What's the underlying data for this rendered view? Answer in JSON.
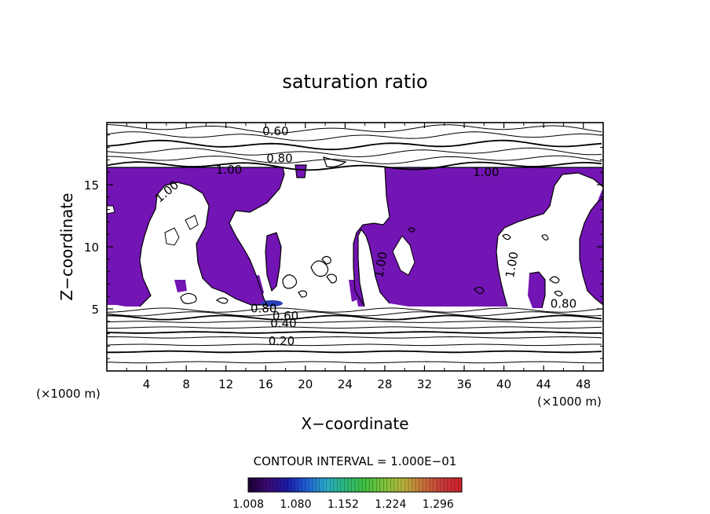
{
  "chart_data": {
    "type": "contour",
    "title": "saturation ratio",
    "xlabel": "X−coordinate",
    "ylabel": "Z−coordinate",
    "x_unit_label": "(×1000 m)",
    "y_unit_label": "(×1000 m)",
    "xlim": [
      0,
      50
    ],
    "ylim": [
      0,
      20
    ],
    "x_ticks": [
      4,
      8,
      12,
      16,
      20,
      24,
      28,
      32,
      36,
      40,
      44,
      48
    ],
    "y_ticks": [
      5,
      10,
      15
    ],
    "contour_interval_text": "CONTOUR INTERVAL = 1.000E−01",
    "contour_labels": [
      {
        "text": "0.60",
        "x": 17.0,
        "z": 19.0
      },
      {
        "text": "0.80",
        "x": 17.4,
        "z": 16.8
      },
      {
        "text": "1.00",
        "x": 12.3,
        "z": 15.9
      },
      {
        "text": "1.00",
        "x": 38.2,
        "z": 15.7
      },
      {
        "text": "1.00",
        "x": 6.3,
        "z": 14.2
      },
      {
        "text": "1.00",
        "x": 28.0,
        "z": 8.5
      },
      {
        "text": "1.00",
        "x": 41.2,
        "z": 8.5
      },
      {
        "text": "0.80",
        "x": 46.0,
        "z": 5.1
      },
      {
        "text": "0.80",
        "x": 15.8,
        "z": 4.7
      },
      {
        "text": "0.60",
        "x": 18.0,
        "z": 4.1
      },
      {
        "text": "0.40",
        "x": 17.8,
        "z": 3.5
      },
      {
        "text": "0.20",
        "x": 17.6,
        "z": 2.1
      }
    ],
    "contour_levels": [
      {
        "z": 0.7,
        "style": "thin"
      },
      {
        "z": 1.55,
        "style": "thick"
      },
      {
        "z": 2.1,
        "style": "thin"
      },
      {
        "z": 2.7,
        "style": "thin"
      },
      {
        "z": 3.1,
        "style": "thick"
      },
      {
        "z": 3.5,
        "style": "thin"
      },
      {
        "z": 3.95,
        "style": "thin"
      },
      {
        "z": 4.3,
        "style": "thick"
      },
      {
        "z": 4.6,
        "style": "thin"
      },
      {
        "z": 4.9,
        "style": "thin"
      },
      {
        "z": 16.5,
        "style": "thick"
      },
      {
        "z": 17.0,
        "style": "thin"
      },
      {
        "z": 17.6,
        "style": "thin"
      },
      {
        "z": 18.2,
        "style": "thick"
      },
      {
        "z": 18.9,
        "style": "thin"
      },
      {
        "z": 19.5,
        "style": "thin"
      }
    ],
    "shaded_regions_description": "supersaturated (ratio > 1.0) area",
    "colorbar": {
      "min": 1.008,
      "max": 1.332,
      "tick_labels": [
        "1.008",
        "1.080",
        "1.152",
        "1.224",
        "1.296"
      ],
      "colors": [
        "#1a0033",
        "#3b0a73",
        "#1a1aa6",
        "#1f5fd6",
        "#2aa8c8",
        "#2ab87a",
        "#3fbf3f",
        "#7fc23a",
        "#b7b23a",
        "#c7703a",
        "#c83a3a",
        "#d0202a"
      ]
    },
    "fill_color": "#7314b4",
    "line_color": "#000000"
  }
}
